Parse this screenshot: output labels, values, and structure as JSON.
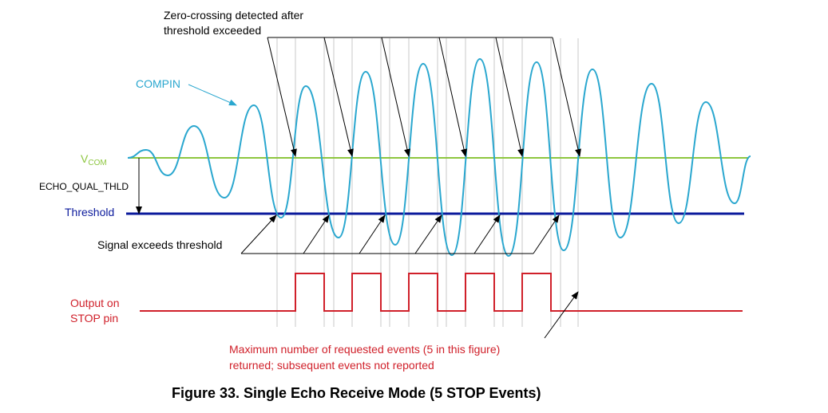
{
  "figure": {
    "caption": "Figure 33.  Single Echo Receive Mode (5 STOP Events)",
    "annotations": {
      "zero_crossing_line1": "Zero-crossing detected after",
      "zero_crossing_line2": "threshold exceeded",
      "compin": "COMPIN",
      "vcom_main": "V",
      "vcom_sub": "COM",
      "echo_qual_thld": "ECHO_QUAL_THLD",
      "threshold": "Threshold",
      "signal_exceeds": "Signal exceeds threshold",
      "output_line1": "Output on",
      "output_line2": "STOP pin",
      "max_events_line1": "Maximum number of requested events (5 in this figure)",
      "max_events_line2": "returned; subsequent events not reported"
    },
    "stop_event_count": 5,
    "colors": {
      "compin": "#2aa7cf",
      "vcom": "#8dc63f",
      "threshold": "#0b1a9c",
      "output": "#d0202a",
      "leader": "#000000",
      "gridline": "#c8c8c8",
      "annotation_red": "#d0202a"
    }
  }
}
